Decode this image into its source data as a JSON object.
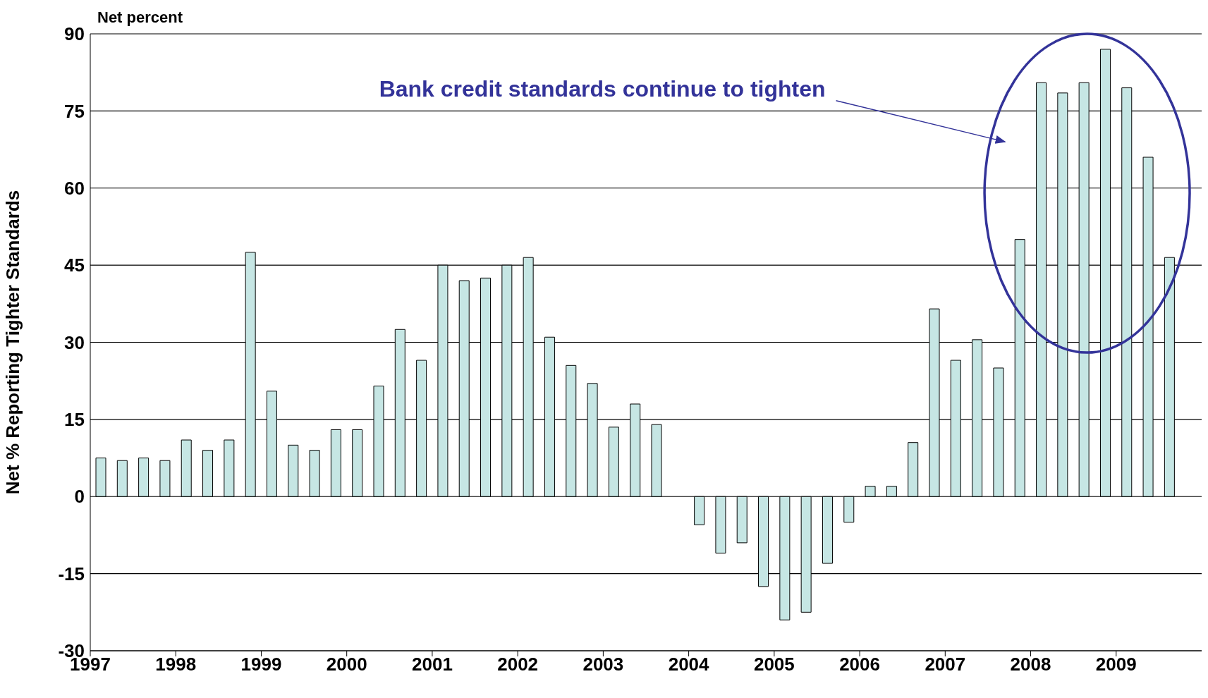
{
  "chart_data": {
    "type": "bar",
    "ylabel": "Net % Reporting Tighter Standards",
    "annotations": [
      "Net percent",
      "Bank credit standards continue to tighten"
    ],
    "x": [
      1997.125,
      1997.375,
      1997.625,
      1997.875,
      1998.125,
      1998.375,
      1998.625,
      1998.875,
      1999.125,
      1999.375,
      1999.625,
      1999.875,
      2000.125,
      2000.375,
      2000.625,
      2000.875,
      2001.125,
      2001.375,
      2001.625,
      2001.875,
      2002.125,
      2002.375,
      2002.625,
      2002.875,
      2003.125,
      2003.375,
      2003.625,
      2003.875,
      2004.125,
      2004.375,
      2004.625,
      2004.875,
      2005.125,
      2005.375,
      2005.625,
      2005.875,
      2006.125,
      2006.375,
      2006.625,
      2006.875,
      2007.125,
      2007.375,
      2007.625,
      2007.875,
      2008.125,
      2008.375,
      2008.625,
      2008.875,
      2009.125,
      2009.375,
      2009.625
    ],
    "values": [
      7.5,
      7,
      7.5,
      7,
      11,
      9,
      11,
      47.5,
      20.5,
      10,
      9,
      13,
      13,
      21.5,
      32.5,
      26.5,
      45,
      42,
      42.5,
      45,
      46.5,
      31,
      25.5,
      22,
      13.5,
      18,
      14,
      0,
      -5.5,
      -11,
      -9,
      -17.5,
      -24,
      -22.5,
      -13,
      -5,
      2,
      2,
      10.5,
      36.5,
      26.5,
      30.5,
      25,
      50,
      80.5,
      78.5,
      80.5,
      87,
      79.5,
      66,
      46.5
    ],
    "color": "#c6e6e4",
    "xlim": [
      1997,
      2010
    ],
    "xticks": [
      1997,
      1998,
      1999,
      2000,
      2001,
      2002,
      2003,
      2004,
      2005,
      2006,
      2007,
      2008,
      2009
    ],
    "ylim": [
      -30,
      90
    ],
    "yticks": [
      -30,
      -15,
      0,
      15,
      30,
      45,
      60,
      75,
      90
    ],
    "grid": "y"
  }
}
